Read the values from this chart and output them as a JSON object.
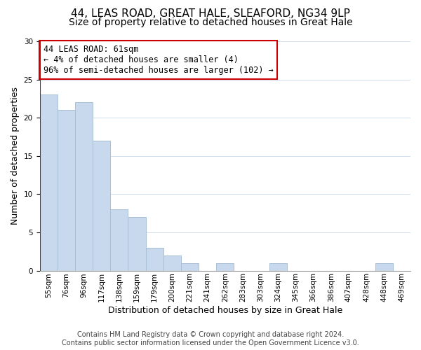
{
  "title": "44, LEAS ROAD, GREAT HALE, SLEAFORD, NG34 9LP",
  "subtitle": "Size of property relative to detached houses in Great Hale",
  "xlabel": "Distribution of detached houses by size in Great Hale",
  "ylabel": "Number of detached properties",
  "bar_color": "#c8d9ed",
  "bar_edge_color": "#a8bfd4",
  "highlight_line_color": "#cc0000",
  "footer_line1": "Contains HM Land Registry data © Crown copyright and database right 2024.",
  "footer_line2": "Contains public sector information licensed under the Open Government Licence v3.0.",
  "annotation_title": "44 LEAS ROAD: 61sqm",
  "annotation_line2": "← 4% of detached houses are smaller (4)",
  "annotation_line3": "96% of semi-detached houses are larger (102) →",
  "bin_labels": [
    "55sqm",
    "76sqm",
    "96sqm",
    "117sqm",
    "138sqm",
    "159sqm",
    "179sqm",
    "200sqm",
    "221sqm",
    "241sqm",
    "262sqm",
    "283sqm",
    "303sqm",
    "324sqm",
    "345sqm",
    "366sqm",
    "386sqm",
    "407sqm",
    "428sqm",
    "448sqm",
    "469sqm"
  ],
  "bin_heights": [
    23,
    21,
    22,
    17,
    8,
    7,
    3,
    2,
    1,
    0,
    1,
    0,
    0,
    1,
    0,
    0,
    0,
    0,
    0,
    1,
    0
  ],
  "highlight_bar_index": 0,
  "ylim": [
    0,
    30
  ],
  "yticks": [
    0,
    5,
    10,
    15,
    20,
    25,
    30
  ],
  "title_fontsize": 11,
  "subtitle_fontsize": 10,
  "axis_label_fontsize": 9,
  "tick_fontsize": 7.5,
  "annotation_box_edge_color": "#cc0000",
  "annotation_box_facecolor": "#ffffff",
  "annotation_fontsize": 8.5,
  "footer_fontsize": 7
}
